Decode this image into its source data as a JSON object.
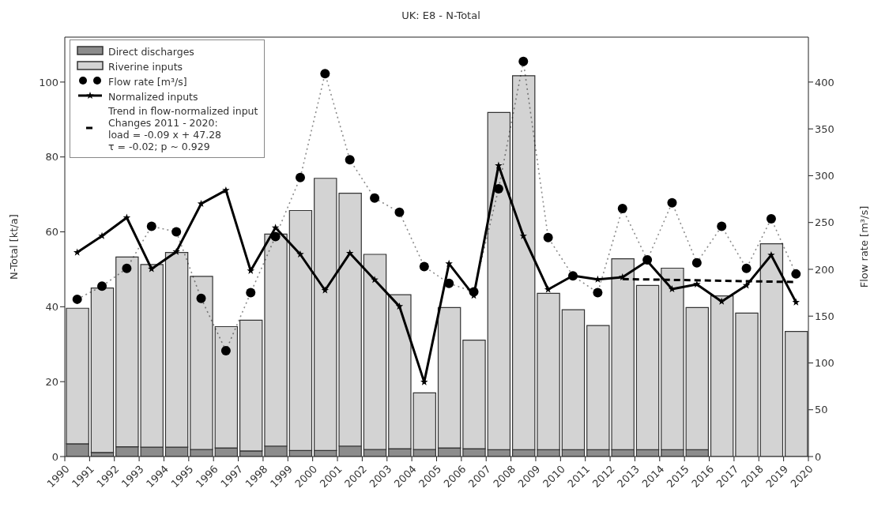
{
  "chart_data": {
    "type": "bar",
    "title": "UK: E8 - N-Total",
    "ylabel": "N-Total [kt/a]",
    "y2label": "Flow rate [m³/s]",
    "stacked": true,
    "legend": "top left",
    "grid": false,
    "x": [
      1990.5,
      1991.5,
      1992.5,
      1993.5,
      1994.5,
      1995.5,
      1996.5,
      1997.5,
      1998.5,
      1999.5,
      2000.5,
      2001.5,
      2002.5,
      2003.5,
      2004.5,
      2005.5,
      2006.5,
      2007.5,
      2008.5,
      2009.5,
      2010.5,
      2011.5,
      2012.5,
      2013.5,
      2014.5,
      2015.5,
      2016.5,
      2017.5,
      2018.5,
      2019.5
    ],
    "xlim": [
      1990,
      2020
    ],
    "xticks": [
      1990,
      1991,
      1992,
      1993,
      1994,
      1995,
      1996,
      1997,
      1998,
      1999,
      2000,
      2001,
      2002,
      2003,
      2004,
      2005,
      2006,
      2007,
      2008,
      2009,
      2010,
      2011,
      2012,
      2013,
      2014,
      2015,
      2016,
      2017,
      2018,
      2019,
      2020
    ],
    "ylim": [
      0,
      112
    ],
    "yticks": [
      0,
      20,
      40,
      60,
      80,
      100
    ],
    "y2lim": [
      0,
      448
    ],
    "y2ticks": [
      0,
      50,
      100,
      150,
      200,
      250,
      300,
      350,
      400
    ],
    "series": [
      {
        "name": "Direct discharges",
        "color": "#8c8c8c",
        "values": [
          3.4,
          1.1,
          2.6,
          2.5,
          2.5,
          1.9,
          2.3,
          1.5,
          2.8,
          1.6,
          1.6,
          2.8,
          1.9,
          2.1,
          1.9,
          2.3,
          2.1,
          1.8,
          1.8,
          1.8,
          1.8,
          1.8,
          1.8,
          1.8,
          1.8,
          1.8,
          null,
          null,
          null,
          null
        ]
      },
      {
        "name": "Riverine inputs",
        "color": "#d3d3d3",
        "values": [
          36.2,
          43.9,
          50.7,
          48.8,
          52.0,
          46.2,
          32.4,
          34.9,
          56.6,
          64.1,
          72.7,
          67.5,
          52.1,
          41.1,
          15.1,
          37.5,
          29.0,
          90.1,
          99.9,
          41.8,
          37.4,
          33.2,
          51.0,
          43.9,
          48.5,
          38.0,
          42.9,
          38.3,
          56.8,
          33.4
        ]
      },
      {
        "name": "Flow rate [m³/s]",
        "type": "line",
        "axis": "y2",
        "color": "#000000",
        "marker": "circle",
        "line_style": "dotted",
        "values": [
          168,
          182,
          201,
          246,
          240,
          169,
          113,
          175,
          235,
          298,
          409,
          317,
          276,
          261,
          203,
          185,
          176,
          286,
          422,
          234,
          193,
          175,
          265,
          210,
          271,
          207,
          246,
          201,
          254,
          195
        ]
      },
      {
        "name": "Normalized inputs",
        "type": "line",
        "color": "#000000",
        "marker": "star",
        "line_style": "solid",
        "values": [
          54.5,
          58.9,
          63.8,
          50.1,
          54.7,
          67.5,
          71.1,
          49.6,
          61.1,
          54.0,
          44.4,
          54.3,
          47.2,
          40.1,
          19.9,
          51.5,
          43.0,
          77.7,
          58.9,
          44.6,
          48.3,
          47.3,
          47.9,
          52.2,
          44.7,
          46.0,
          41.4,
          45.7,
          53.8,
          41.2
        ]
      },
      {
        "name": "Trend in flow-normalized input\nChanges 2011 - 2020:\nload = -0.09 x + 47.28\nτ = -0.02; p ~ 0.929",
        "type": "line",
        "color": "#000000",
        "marker": "none",
        "line_style": "dashed",
        "x": [
          2012.5,
          2019.5
        ],
        "values": [
          47.4,
          46.6
        ]
      }
    ]
  }
}
